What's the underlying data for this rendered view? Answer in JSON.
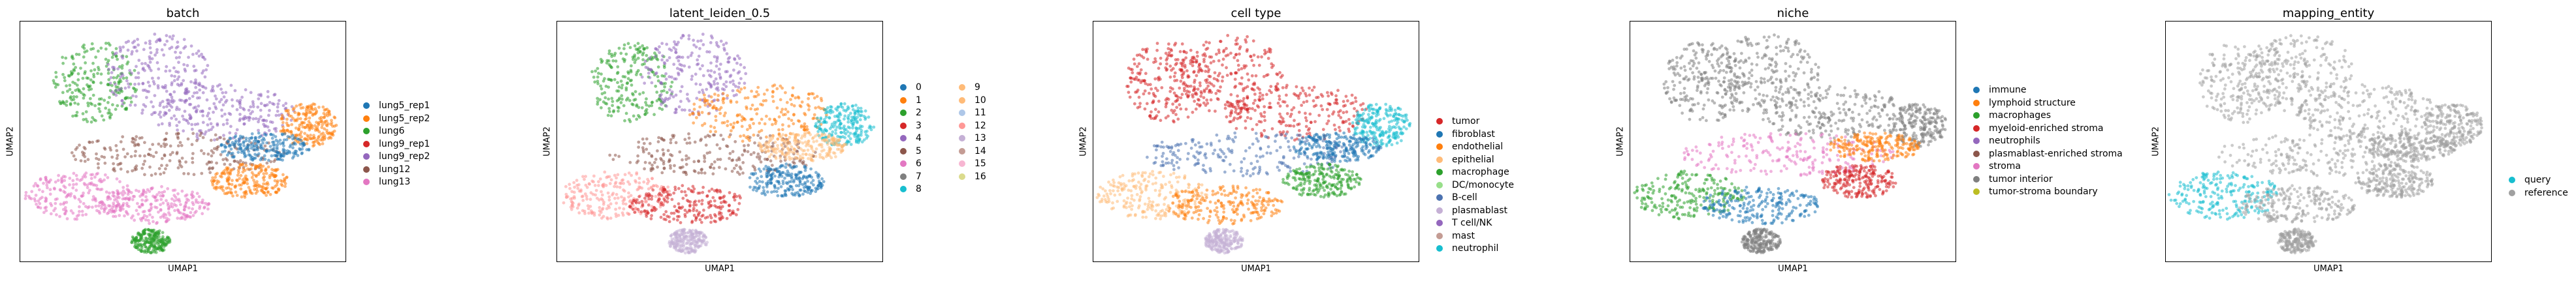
{
  "chart_data": [
    {
      "type": "scatter",
      "title": "batch",
      "xlabel": "UMAP1",
      "ylabel": "UMAP2",
      "grid": false,
      "legend_placement": "right",
      "series": [
        {
          "name": "lung5_rep1",
          "color": "#1f77b4"
        },
        {
          "name": "lung5_rep2",
          "color": "#ff7f0e"
        },
        {
          "name": "lung6",
          "color": "#2ca02c"
        },
        {
          "name": "lung9_rep1",
          "color": "#d62728"
        },
        {
          "name": "lung9_rep2",
          "color": "#9467bd"
        },
        {
          "name": "lung12",
          "color": "#8c564b"
        },
        {
          "name": "lung13",
          "color": "#e377c2"
        }
      ]
    },
    {
      "type": "scatter",
      "title": "latent_leiden_0.5",
      "xlabel": "UMAP1",
      "ylabel": "UMAP2",
      "grid": false,
      "legend_placement": "right",
      "series": [
        {
          "name": "0",
          "color": "#1f77b4"
        },
        {
          "name": "1",
          "color": "#ff7f0e"
        },
        {
          "name": "2",
          "color": "#2ca02c"
        },
        {
          "name": "3",
          "color": "#d62728"
        },
        {
          "name": "4",
          "color": "#9467bd"
        },
        {
          "name": "5",
          "color": "#8c564b"
        },
        {
          "name": "6",
          "color": "#e377c2"
        },
        {
          "name": "7",
          "color": "#7f7f7f"
        },
        {
          "name": "8",
          "color": "#17becf"
        },
        {
          "name": "9",
          "color": "#ffbb78"
        },
        {
          "name": "10",
          "color": "#ffbb78"
        },
        {
          "name": "11",
          "color": "#aec7e8"
        },
        {
          "name": "12",
          "color": "#ff9896"
        },
        {
          "name": "13",
          "color": "#c5b0d5"
        },
        {
          "name": "14",
          "color": "#c49c94"
        },
        {
          "name": "15",
          "color": "#f7b6d2"
        },
        {
          "name": "16",
          "color": "#dbdb8d"
        }
      ]
    },
    {
      "type": "scatter",
      "title": "cell type",
      "xlabel": "UMAP1",
      "ylabel": "UMAP2",
      "grid": false,
      "legend_placement": "right",
      "series": [
        {
          "name": "tumor",
          "color": "#d62728"
        },
        {
          "name": "fibroblast",
          "color": "#1f77b4"
        },
        {
          "name": "endothelial",
          "color": "#ff7f0e"
        },
        {
          "name": "epithelial",
          "color": "#ffbb78"
        },
        {
          "name": "macrophage",
          "color": "#2ca02c"
        },
        {
          "name": "DC/monocyte",
          "color": "#98df8a"
        },
        {
          "name": "B-cell",
          "color": "#4c72b0"
        },
        {
          "name": "plasmablast",
          "color": "#c5b0d5"
        },
        {
          "name": "T cell/NK",
          "color": "#9467bd"
        },
        {
          "name": "mast",
          "color": "#c49c94"
        },
        {
          "name": "neutrophil",
          "color": "#17becf"
        }
      ]
    },
    {
      "type": "scatter",
      "title": "niche",
      "xlabel": "UMAP1",
      "ylabel": "UMAP2",
      "grid": false,
      "legend_placement": "right",
      "series": [
        {
          "name": "immune",
          "color": "#1f77b4"
        },
        {
          "name": "lymphoid structure",
          "color": "#ff7f0e"
        },
        {
          "name": "macrophages",
          "color": "#2ca02c"
        },
        {
          "name": "myeloid-enriched stroma",
          "color": "#d62728"
        },
        {
          "name": "neutrophils",
          "color": "#9467bd"
        },
        {
          "name": "plasmablast-enriched stroma",
          "color": "#8c564b"
        },
        {
          "name": "stroma",
          "color": "#e377c2"
        },
        {
          "name": "tumor interior",
          "color": "#7f7f7f"
        },
        {
          "name": "tumor-stroma boundary",
          "color": "#bcbd22"
        }
      ]
    },
    {
      "type": "scatter",
      "title": "mapping_entity",
      "xlabel": "UMAP1",
      "ylabel": "UMAP2",
      "grid": false,
      "legend_placement": "right",
      "series": [
        {
          "name": "query",
          "color": "#17becf"
        },
        {
          "name": "reference",
          "color": "#a0a0a0"
        }
      ]
    }
  ]
}
